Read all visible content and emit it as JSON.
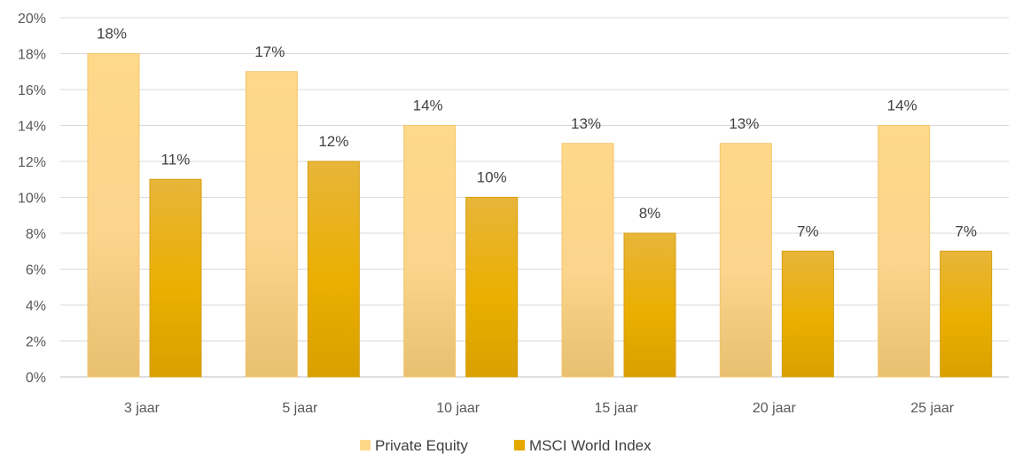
{
  "chart_data": {
    "type": "bar",
    "categories": [
      "3 jaar",
      "5 jaar",
      "10 jaar",
      "15 jaar",
      "20 jaar",
      "25 jaar"
    ],
    "series": [
      {
        "name": "Private Equity",
        "values": [
          18,
          17,
          14,
          13,
          13,
          14
        ],
        "color": "#FFD98A"
      },
      {
        "name": "MSCI World Index",
        "values": [
          11,
          12,
          10,
          8,
          7,
          7
        ],
        "color": "#E5A800"
      }
    ],
    "data_labels": [
      [
        "18%",
        "17%",
        "14%",
        "13%",
        "13%",
        "14%"
      ],
      [
        "11%",
        "12%",
        "10%",
        "8%",
        "7%",
        "7%"
      ]
    ],
    "y_ticks": [
      "0%",
      "2%",
      "4%",
      "6%",
      "8%",
      "10%",
      "12%",
      "14%",
      "16%",
      "18%",
      "20%"
    ],
    "ylim": [
      0,
      20
    ],
    "grid": true,
    "legend": "bottom-center"
  }
}
